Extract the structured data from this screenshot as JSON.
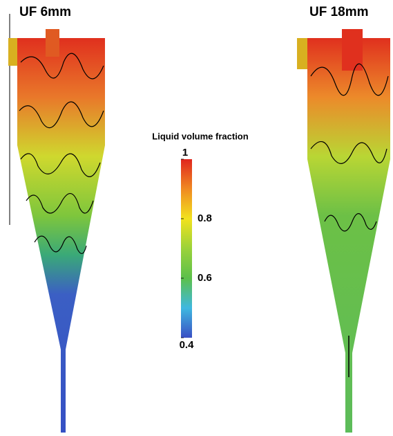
{
  "panels": [
    {
      "title": "UF 6mm"
    },
    {
      "title": "UF 18mm"
    }
  ],
  "colorbar": {
    "title": "Liquid volume fraction",
    "lim": [
      0.4,
      1
    ],
    "ticks": [
      0.4,
      0.6,
      0.8,
      1
    ],
    "colors": [
      "#3a4fc4",
      "#3fb8e0",
      "#5cc04a",
      "#9bd23a",
      "#f2e21d",
      "#f08a22",
      "#e0261e"
    ]
  }
}
